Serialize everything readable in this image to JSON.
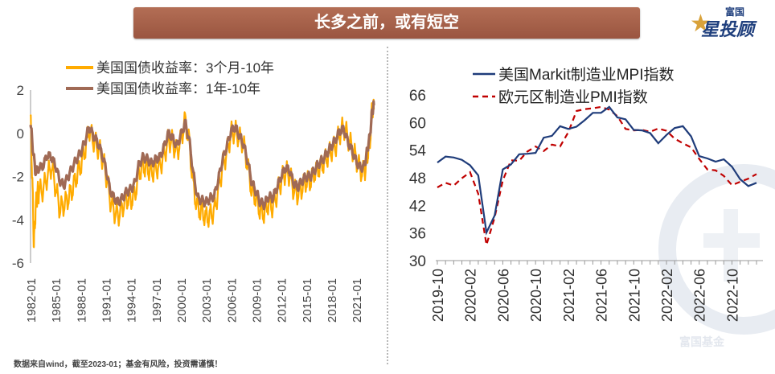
{
  "header": {
    "title": "长多之前，或有短空"
  },
  "logo": {
    "top_text": "富国",
    "main_text": "星投顾",
    "star_icon": "star-icon"
  },
  "watermark": {
    "text": "富国基金"
  },
  "footer": {
    "note": "数据来自wind，截至2023-01；基金有风险，投资需谨慎！"
  },
  "colors": {
    "yellow": "#ffab00",
    "brown": "#a06a55",
    "navy": "#1f3c7a",
    "red": "#c00000"
  },
  "chart_data": [
    {
      "type": "line",
      "title": "",
      "xlabel": "",
      "ylabel": "",
      "ylim": [
        -6,
        2
      ],
      "yticks": [
        2,
        0,
        -2,
        -4,
        -6
      ],
      "xticks": [
        "1982-01",
        "1985-01",
        "1988-01",
        "1991-01",
        "1994-01",
        "1997-01",
        "2000-01",
        "2003-01",
        "2006-01",
        "2009-01",
        "2012-01",
        "2015-01",
        "2018-01",
        "2021-01"
      ],
      "xrange": [
        1982.0,
        2023.1
      ],
      "legend_position": "top",
      "grid": false,
      "series": [
        {
          "name": "美国国债收益率：3个月-10年",
          "color": "#ffab00",
          "x": [
            1982.0,
            1982.2,
            1982.4,
            1982.6,
            1982.8,
            1983.0,
            1983.5,
            1984.0,
            1984.5,
            1985.0,
            1985.5,
            1986.0,
            1986.5,
            1987.0,
            1987.5,
            1988.0,
            1988.5,
            1989.0,
            1989.5,
            1990.0,
            1990.5,
            1991.0,
            1991.5,
            1992.0,
            1992.5,
            1993.0,
            1993.5,
            1994.0,
            1994.5,
            1995.0,
            1995.5,
            1996.0,
            1996.5,
            1997.0,
            1997.5,
            1998.0,
            1998.5,
            1999.0,
            1999.5,
            2000.0,
            2000.5,
            2001.0,
            2001.5,
            2002.0,
            2002.5,
            2003.0,
            2003.5,
            2004.0,
            2004.5,
            2005.0,
            2005.5,
            2006.0,
            2006.5,
            2007.0,
            2007.5,
            2008.0,
            2008.5,
            2009.0,
            2009.5,
            2010.0,
            2010.5,
            2011.0,
            2011.5,
            2012.0,
            2012.5,
            2013.0,
            2013.5,
            2014.0,
            2014.5,
            2015.0,
            2015.5,
            2016.0,
            2016.5,
            2017.0,
            2017.5,
            2018.0,
            2018.5,
            2019.0,
            2019.5,
            2020.0,
            2020.5,
            2021.0,
            2021.5,
            2022.0,
            2022.3,
            2022.6,
            2022.9,
            2023.1
          ],
          "values": [
            0.8,
            -2.0,
            -5.2,
            -3.5,
            -2.8,
            -2.7,
            -2.6,
            -2.0,
            -1.5,
            -2.5,
            -3.5,
            -3.3,
            -3.0,
            -2.6,
            -2.0,
            -1.5,
            -0.8,
            0.2,
            -0.3,
            -0.6,
            -1.0,
            -1.8,
            -3.0,
            -3.6,
            -3.8,
            -3.4,
            -3.0,
            -3.1,
            -2.8,
            -1.8,
            -1.5,
            -1.6,
            -1.8,
            -1.6,
            -1.5,
            -1.0,
            -0.3,
            -0.4,
            -0.9,
            -0.3,
            0.6,
            -0.4,
            -2.5,
            -3.5,
            -3.6,
            -3.9,
            -3.8,
            -3.6,
            -2.6,
            -1.5,
            -0.9,
            0.0,
            0.1,
            -0.2,
            -0.5,
            -1.5,
            -2.7,
            -3.0,
            -3.6,
            -3.7,
            -3.2,
            -3.4,
            -2.8,
            -2.2,
            -1.8,
            -1.9,
            -2.6,
            -2.8,
            -2.5,
            -2.2,
            -2.2,
            -1.8,
            -1.6,
            -1.4,
            -1.1,
            -0.8,
            -0.6,
            0.0,
            0.3,
            -0.2,
            -0.7,
            -1.2,
            -1.7,
            -1.8,
            -1.0,
            -0.5,
            1.2,
            1.1
          ]
        },
        {
          "name": "美国国债收益率：1年-10年",
          "color": "#a06a55",
          "x": [
            1982.0,
            1982.3,
            1982.6,
            1983.0,
            1983.5,
            1984.0,
            1984.5,
            1985.0,
            1985.5,
            1986.0,
            1986.5,
            1987.0,
            1987.5,
            1988.0,
            1988.5,
            1989.0,
            1989.5,
            1990.0,
            1990.5,
            1991.0,
            1991.5,
            1992.0,
            1992.5,
            1993.0,
            1993.5,
            1994.0,
            1994.5,
            1995.0,
            1995.5,
            1996.0,
            1996.5,
            1997.0,
            1997.5,
            1998.0,
            1998.5,
            1999.0,
            1999.5,
            2000.0,
            2000.5,
            2001.0,
            2001.5,
            2002.0,
            2002.5,
            2003.0,
            2003.5,
            2004.0,
            2004.5,
            2005.0,
            2005.5,
            2006.0,
            2006.5,
            2007.0,
            2007.5,
            2008.0,
            2008.5,
            2009.0,
            2009.5,
            2010.0,
            2010.5,
            2011.0,
            2011.5,
            2012.0,
            2012.5,
            2013.0,
            2013.5,
            2014.0,
            2014.5,
            2015.0,
            2015.5,
            2016.0,
            2016.5,
            2017.0,
            2017.5,
            2018.0,
            2018.5,
            2019.0,
            2019.5,
            2020.0,
            2020.5,
            2021.0,
            2021.5,
            2022.0,
            2022.3,
            2022.6,
            2022.9,
            2023.1
          ],
          "values": [
            0.5,
            -0.8,
            -1.8,
            -1.6,
            -1.5,
            -1.0,
            -1.1,
            -1.5,
            -2.2,
            -2.4,
            -2.0,
            -1.6,
            -1.2,
            -0.9,
            -0.4,
            0.3,
            -0.1,
            -0.4,
            -0.9,
            -1.6,
            -2.6,
            -3.0,
            -3.2,
            -3.0,
            -2.7,
            -2.6,
            -2.3,
            -1.4,
            -1.1,
            -1.2,
            -1.4,
            -1.2,
            -1.1,
            -0.6,
            0.0,
            -0.2,
            -0.6,
            -0.1,
            0.5,
            -0.3,
            -1.9,
            -3.0,
            -3.1,
            -3.2,
            -3.0,
            -2.9,
            -2.1,
            -1.2,
            -0.6,
            0.1,
            0.3,
            -0.1,
            -0.5,
            -1.3,
            -2.3,
            -2.7,
            -3.2,
            -3.3,
            -2.9,
            -3.0,
            -2.5,
            -2.0,
            -1.6,
            -1.7,
            -2.3,
            -2.5,
            -2.2,
            -2.0,
            -2.0,
            -1.7,
            -1.4,
            -1.2,
            -0.9,
            -0.6,
            -0.3,
            0.1,
            0.2,
            -0.4,
            -0.8,
            -1.3,
            -1.6,
            -1.5,
            -0.8,
            -0.2,
            1.0,
            1.3
          ]
        }
      ]
    },
    {
      "type": "line",
      "title": "",
      "xlabel": "",
      "ylabel": "",
      "ylim": [
        30,
        66
      ],
      "yticks": [
        66,
        60,
        54,
        48,
        42,
        36,
        30
      ],
      "xticks": [
        "2019-10",
        "2020-02",
        "2020-06",
        "2020-10",
        "2021-02",
        "2021-06",
        "2021-10",
        "2022-02",
        "2022-06",
        "2022-10"
      ],
      "x_months": [
        "2019-10",
        "2019-11",
        "2019-12",
        "2020-01",
        "2020-02",
        "2020-03",
        "2020-04",
        "2020-05",
        "2020-06",
        "2020-07",
        "2020-08",
        "2020-09",
        "2020-10",
        "2020-11",
        "2020-12",
        "2021-01",
        "2021-02",
        "2021-03",
        "2021-04",
        "2021-05",
        "2021-06",
        "2021-07",
        "2021-08",
        "2021-09",
        "2021-10",
        "2021-11",
        "2021-12",
        "2022-01",
        "2022-02",
        "2022-03",
        "2022-04",
        "2022-05",
        "2022-06",
        "2022-07",
        "2022-08",
        "2022-09",
        "2022-10",
        "2022-11",
        "2022-12",
        "2023-01"
      ],
      "legend_position": "top",
      "grid": false,
      "series": [
        {
          "name": "美国Markit制造业MPI指数",
          "color": "#1f3c7a",
          "dash": "solid",
          "values": [
            51.3,
            52.6,
            52.4,
            51.9,
            50.7,
            48.5,
            36.1,
            39.8,
            49.8,
            50.9,
            53.1,
            53.2,
            53.4,
            56.7,
            57.1,
            59.2,
            58.6,
            59.1,
            60.5,
            62.1,
            62.1,
            63.4,
            61.1,
            60.7,
            58.4,
            58.3,
            57.7,
            55.5,
            57.3,
            58.8,
            59.2,
            57.0,
            52.7,
            52.2,
            51.5,
            52.0,
            50.4,
            47.7,
            46.2,
            46.9
          ]
        },
        {
          "name": "欧元区制造业PMI指数",
          "color": "#c00000",
          "dash": "dashed",
          "values": [
            45.9,
            46.9,
            46.3,
            47.9,
            49.2,
            44.5,
            33.4,
            39.4,
            47.4,
            51.8,
            51.7,
            53.7,
            54.8,
            53.8,
            55.2,
            54.8,
            57.9,
            62.5,
            62.9,
            63.1,
            63.4,
            62.8,
            61.4,
            58.6,
            58.3,
            58.4,
            58.0,
            58.7,
            58.2,
            56.5,
            55.5,
            54.6,
            52.1,
            49.8,
            49.6,
            48.4,
            46.4,
            47.1,
            47.8,
            48.8
          ]
        }
      ]
    }
  ]
}
